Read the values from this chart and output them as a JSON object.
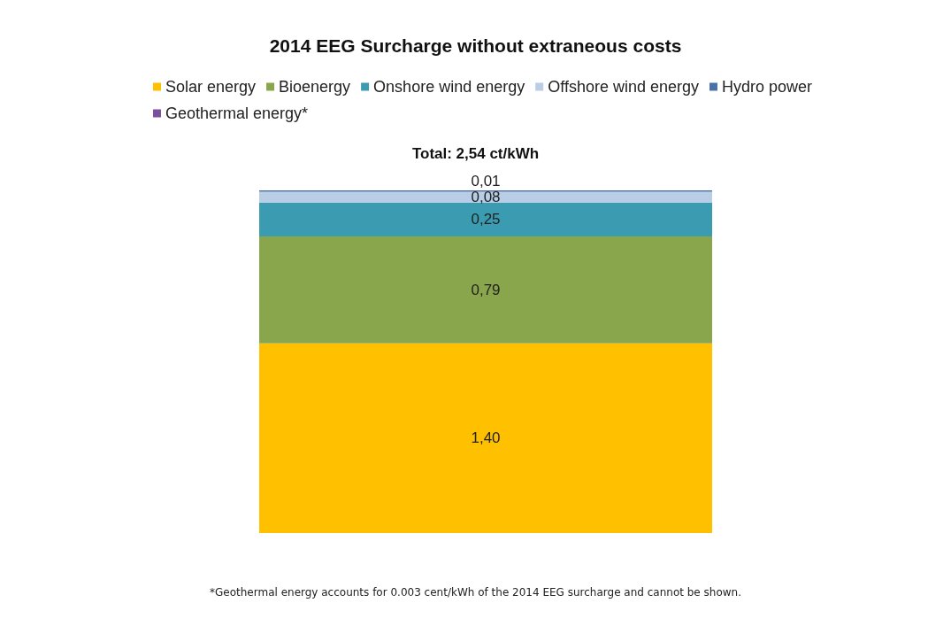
{
  "chart_data": {
    "type": "bar",
    "stacked": true,
    "title": "2014 EEG Surcharge without extraneous costs",
    "subtitle": "Total: 2,54 ct/kWh",
    "categories": [
      null
    ],
    "series": [
      {
        "name": "Solar energy",
        "color": "#ffc000",
        "values": [
          1.4
        ],
        "value_labels": [
          "1,40"
        ]
      },
      {
        "name": "Bioenergy",
        "color": "#8aa64c",
        "values": [
          0.79
        ],
        "value_labels": [
          "0,79"
        ]
      },
      {
        "name": "Onshore wind energy",
        "color": "#3b9bb1",
        "values": [
          0.25
        ],
        "value_labels": [
          "0,25"
        ]
      },
      {
        "name": "Offshore wind energy",
        "color": "#b9cde6",
        "values": [
          0.08
        ],
        "value_labels": [
          "0,08"
        ]
      },
      {
        "name": "Hydro power",
        "color": "#4a72a8",
        "values": [
          0.01
        ],
        "value_labels": [
          "0,01"
        ]
      },
      {
        "name": "Geothermal energy*",
        "color": "#7b4f9b",
        "values": [
          null
        ],
        "value_labels": [
          null
        ]
      }
    ],
    "legend": "top",
    "annotations": [
      "*Geothermal energy accounts for 0.003 cent/kWh of the 2014 EEG surcharge and cannot be shown."
    ]
  }
}
